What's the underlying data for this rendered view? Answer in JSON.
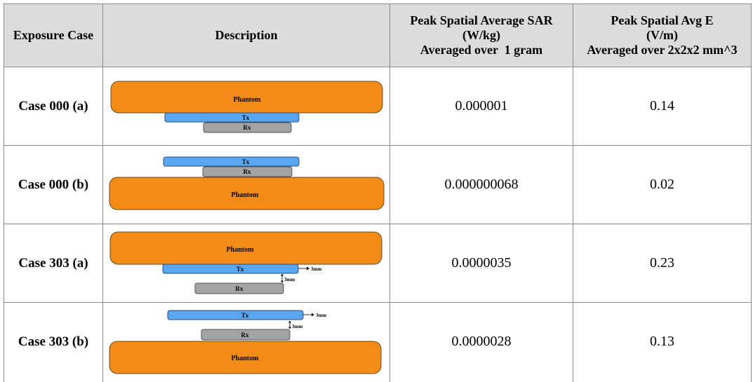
{
  "header": {
    "exposure_case": "Exposure Case",
    "description": "Description",
    "sar": [
      "Peak Spatial Average SAR",
      "(W/kg)",
      "Averaged over  1 gram"
    ],
    "e": [
      "Peak Spatial Avg E",
      "(V/m)",
      "Averaged over 2x2x2 mm^3"
    ]
  },
  "labels": {
    "phantom": "Phantom",
    "tx": "Tx",
    "rx": "Rx",
    "gap": "3mm"
  },
  "rows": [
    {
      "case": "Case 000 (a)",
      "sar": "0.000001",
      "e": "0.14"
    },
    {
      "case": "Case 000 (b)",
      "sar": "0.000000068",
      "e": "0.02"
    },
    {
      "case": "Case 303 (a)",
      "sar": "0.0000035",
      "e": "0.23"
    },
    {
      "case": "Case 303 (b)",
      "sar": "0.0000028",
      "e": "0.13"
    }
  ],
  "colors": {
    "phantom": "#f28c17",
    "tx": "#5aa6f0",
    "rx": "#a3a3a3",
    "header_bg": "#dcdcdc",
    "border": "#8a8a8a"
  }
}
